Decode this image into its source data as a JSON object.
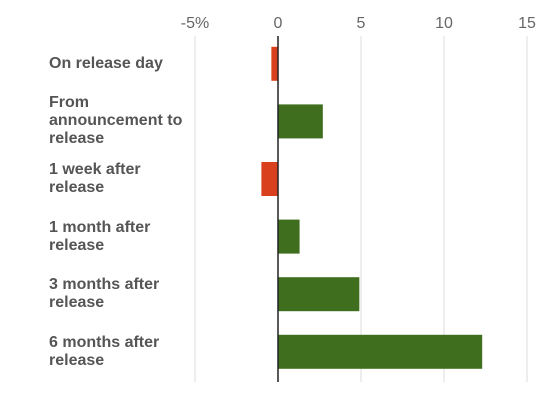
{
  "chart_data": {
    "type": "barh",
    "categories": [
      "On release day",
      "From announcement to release",
      "1 week after release",
      "1 month after release",
      "3 months after release",
      "6 months after release"
    ],
    "values": [
      -0.4,
      2.7,
      -1.0,
      1.3,
      4.9,
      12.3
    ],
    "positive_color": "#3f6e1e",
    "negative_color": "#d9401e",
    "xlim": [
      -5,
      15
    ],
    "xticks": [
      {
        "value": -5,
        "label": "-5%"
      },
      0,
      5,
      10,
      15
    ],
    "grid": true
  }
}
